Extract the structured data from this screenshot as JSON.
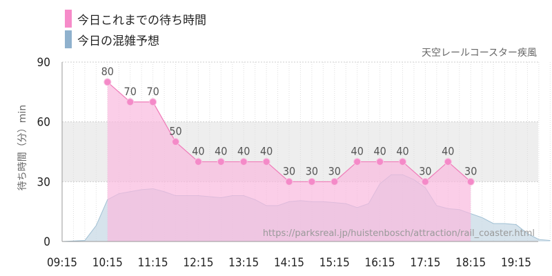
{
  "legend": {
    "wait_label": "今日これまでの待ち時間",
    "crowd_label": "今日の混雑予想"
  },
  "attraction_name": "天空レールコースター疾風",
  "source_url": "https://parksreal.jp/huistenbosch/attraction/rail_coaster.html",
  "colors": {
    "wait_line": "#f07ab8",
    "wait_fill": "#f9b9de",
    "wait_marker": "#f48ac8",
    "crowd_fill": "#c8dae6",
    "crowd_stroke": "#9fbfd3",
    "band": "#eeeeee",
    "grid": "#cccccc"
  },
  "chart_data": {
    "type": "area",
    "xlabel": "",
    "ylabel": "待ち時間（分）min",
    "ylim": [
      0,
      90
    ],
    "y_ticks": [
      0,
      30,
      60,
      90
    ],
    "x_ticks": [
      "09:15",
      "10:15",
      "11:15",
      "12:15",
      "13:15",
      "14:15",
      "15:15",
      "16:15",
      "17:15",
      "18:15",
      "19:15"
    ],
    "x_range": [
      "09:15",
      "20:00"
    ],
    "shaded_band": [
      30,
      60
    ],
    "grid": true,
    "series": [
      {
        "name": "今日これまでの待ち時間",
        "type": "line-area",
        "x": [
          "10:15",
          "10:45",
          "11:15",
          "11:45",
          "12:15",
          "12:45",
          "13:15",
          "13:45",
          "14:15",
          "14:45",
          "15:15",
          "15:45",
          "16:15",
          "16:45",
          "17:15",
          "17:45",
          "18:15"
        ],
        "values": [
          80,
          70,
          70,
          50,
          40,
          40,
          40,
          40,
          30,
          30,
          30,
          40,
          40,
          40,
          30,
          40,
          30
        ]
      },
      {
        "name": "今日の混雑予想",
        "type": "area",
        "x": [
          "09:15",
          "09:45",
          "10:00",
          "10:15",
          "10:30",
          "10:45",
          "11:00",
          "11:15",
          "11:30",
          "11:45",
          "12:00",
          "12:15",
          "12:30",
          "12:45",
          "13:00",
          "13:15",
          "13:30",
          "13:45",
          "14:00",
          "14:15",
          "14:30",
          "14:45",
          "15:00",
          "15:15",
          "15:30",
          "15:45",
          "16:00",
          "16:15",
          "16:30",
          "16:45",
          "17:00",
          "17:15",
          "17:30",
          "17:45",
          "18:00",
          "18:15",
          "18:30",
          "18:45",
          "19:00",
          "19:15",
          "19:30",
          "19:45",
          "20:00"
        ],
        "values": [
          0,
          0.5,
          8,
          21,
          24,
          25,
          26,
          26.5,
          25,
          23,
          23,
          23,
          22.5,
          22,
          23,
          23,
          21,
          18,
          18,
          20,
          20.5,
          20,
          20,
          19.5,
          19,
          17,
          19,
          29,
          33.5,
          33.5,
          31,
          27,
          18,
          16.5,
          16,
          14,
          12,
          9,
          9,
          8.5,
          4,
          1,
          0.5
        ]
      }
    ]
  }
}
